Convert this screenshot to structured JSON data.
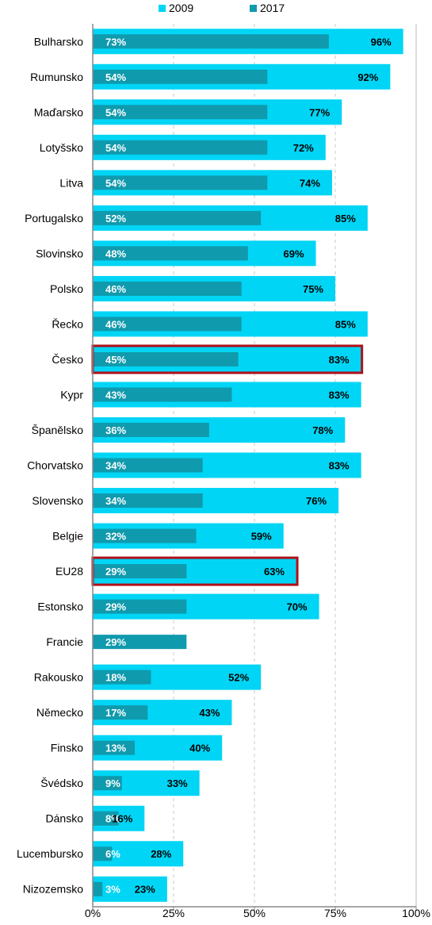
{
  "colors": {
    "series_2009": "#00d5f5",
    "series_2017": "#109aad",
    "highlight_outline": "#b01018",
    "axis": "#888888",
    "grid": "#c8c8c8"
  },
  "chart_data": {
    "type": "bar",
    "orientation": "horizontal",
    "categories": [
      "Bulharsko",
      "Rumunsko",
      "Maďarsko",
      "Lotyšsko",
      "Litva",
      "Portugalsko",
      "Slovinsko",
      "Polsko",
      "Řecko",
      "Česko",
      "Kypr",
      "Španělsko",
      "Chorvatsko",
      "Slovensko",
      "Belgie",
      "EU28",
      "Estonsko",
      "Francie",
      "Rakousko",
      "Německo",
      "Finsko",
      "Švédsko",
      "Dánsko",
      "Lucembursko",
      "Nizozemsko"
    ],
    "series": [
      {
        "name": "2009",
        "values": [
          96,
          92,
          77,
          72,
          74,
          85,
          69,
          75,
          85,
          83,
          83,
          78,
          83,
          76,
          59,
          63,
          70,
          null,
          52,
          43,
          40,
          33,
          16,
          28,
          23
        ]
      },
      {
        "name": "2017",
        "values": [
          73,
          54,
          54,
          54,
          54,
          52,
          48,
          46,
          46,
          45,
          43,
          36,
          34,
          34,
          32,
          29,
          29,
          29,
          18,
          17,
          13,
          9,
          8,
          6,
          3
        ]
      }
    ],
    "labels_2009": [
      "96%",
      "92%",
      "77%",
      "72%",
      "74%",
      "85%",
      "69%",
      "75%",
      "85%",
      "83%",
      "83%",
      "78%",
      "83%",
      "76%",
      "59%",
      "63%",
      "70%",
      "",
      "52%",
      "43%",
      "40%",
      "33%",
      "16%",
      "28%",
      "23%"
    ],
    "labels_2017": [
      "73%",
      "54%",
      "54%",
      "54%",
      "54%",
      "52%",
      "48%",
      "46%",
      "46%",
      "45%",
      "43%",
      "36%",
      "34%",
      "34%",
      "32%",
      "29%",
      "29%",
      "29%",
      "18%",
      "17%",
      "13%",
      "9%",
      "8%",
      "6%",
      "3%"
    ],
    "highlighted": [
      "Česko",
      "EU28"
    ],
    "xlim": [
      0,
      100
    ],
    "xticks": [
      0,
      25,
      50,
      75,
      100
    ],
    "xtick_labels": [
      "0%",
      "25%",
      "50%",
      "75%",
      "100%"
    ],
    "grid": "vertical dashed",
    "legend": "top",
    "title": "",
    "xlabel": "",
    "ylabel": ""
  }
}
